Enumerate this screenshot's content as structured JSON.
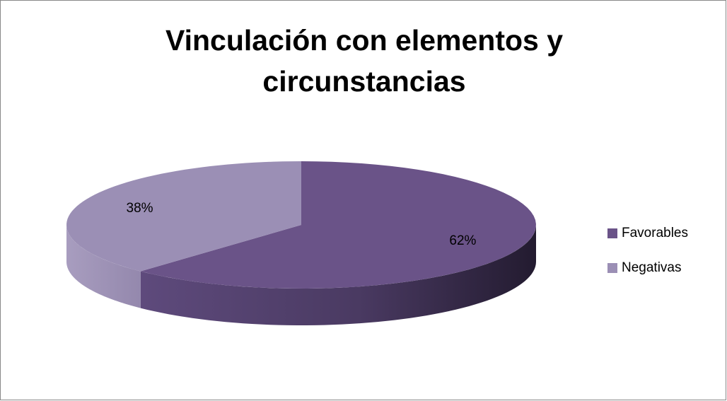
{
  "chart_data": {
    "type": "pie",
    "title": "Vinculación con elementos y circunstancias",
    "categories": [
      "Favorables",
      "Negativas"
    ],
    "values": [
      62,
      38
    ],
    "value_labels": [
      "62%",
      "38%"
    ],
    "colors": [
      "#6a5388",
      "#9b8fb5"
    ],
    "legend": "right"
  }
}
